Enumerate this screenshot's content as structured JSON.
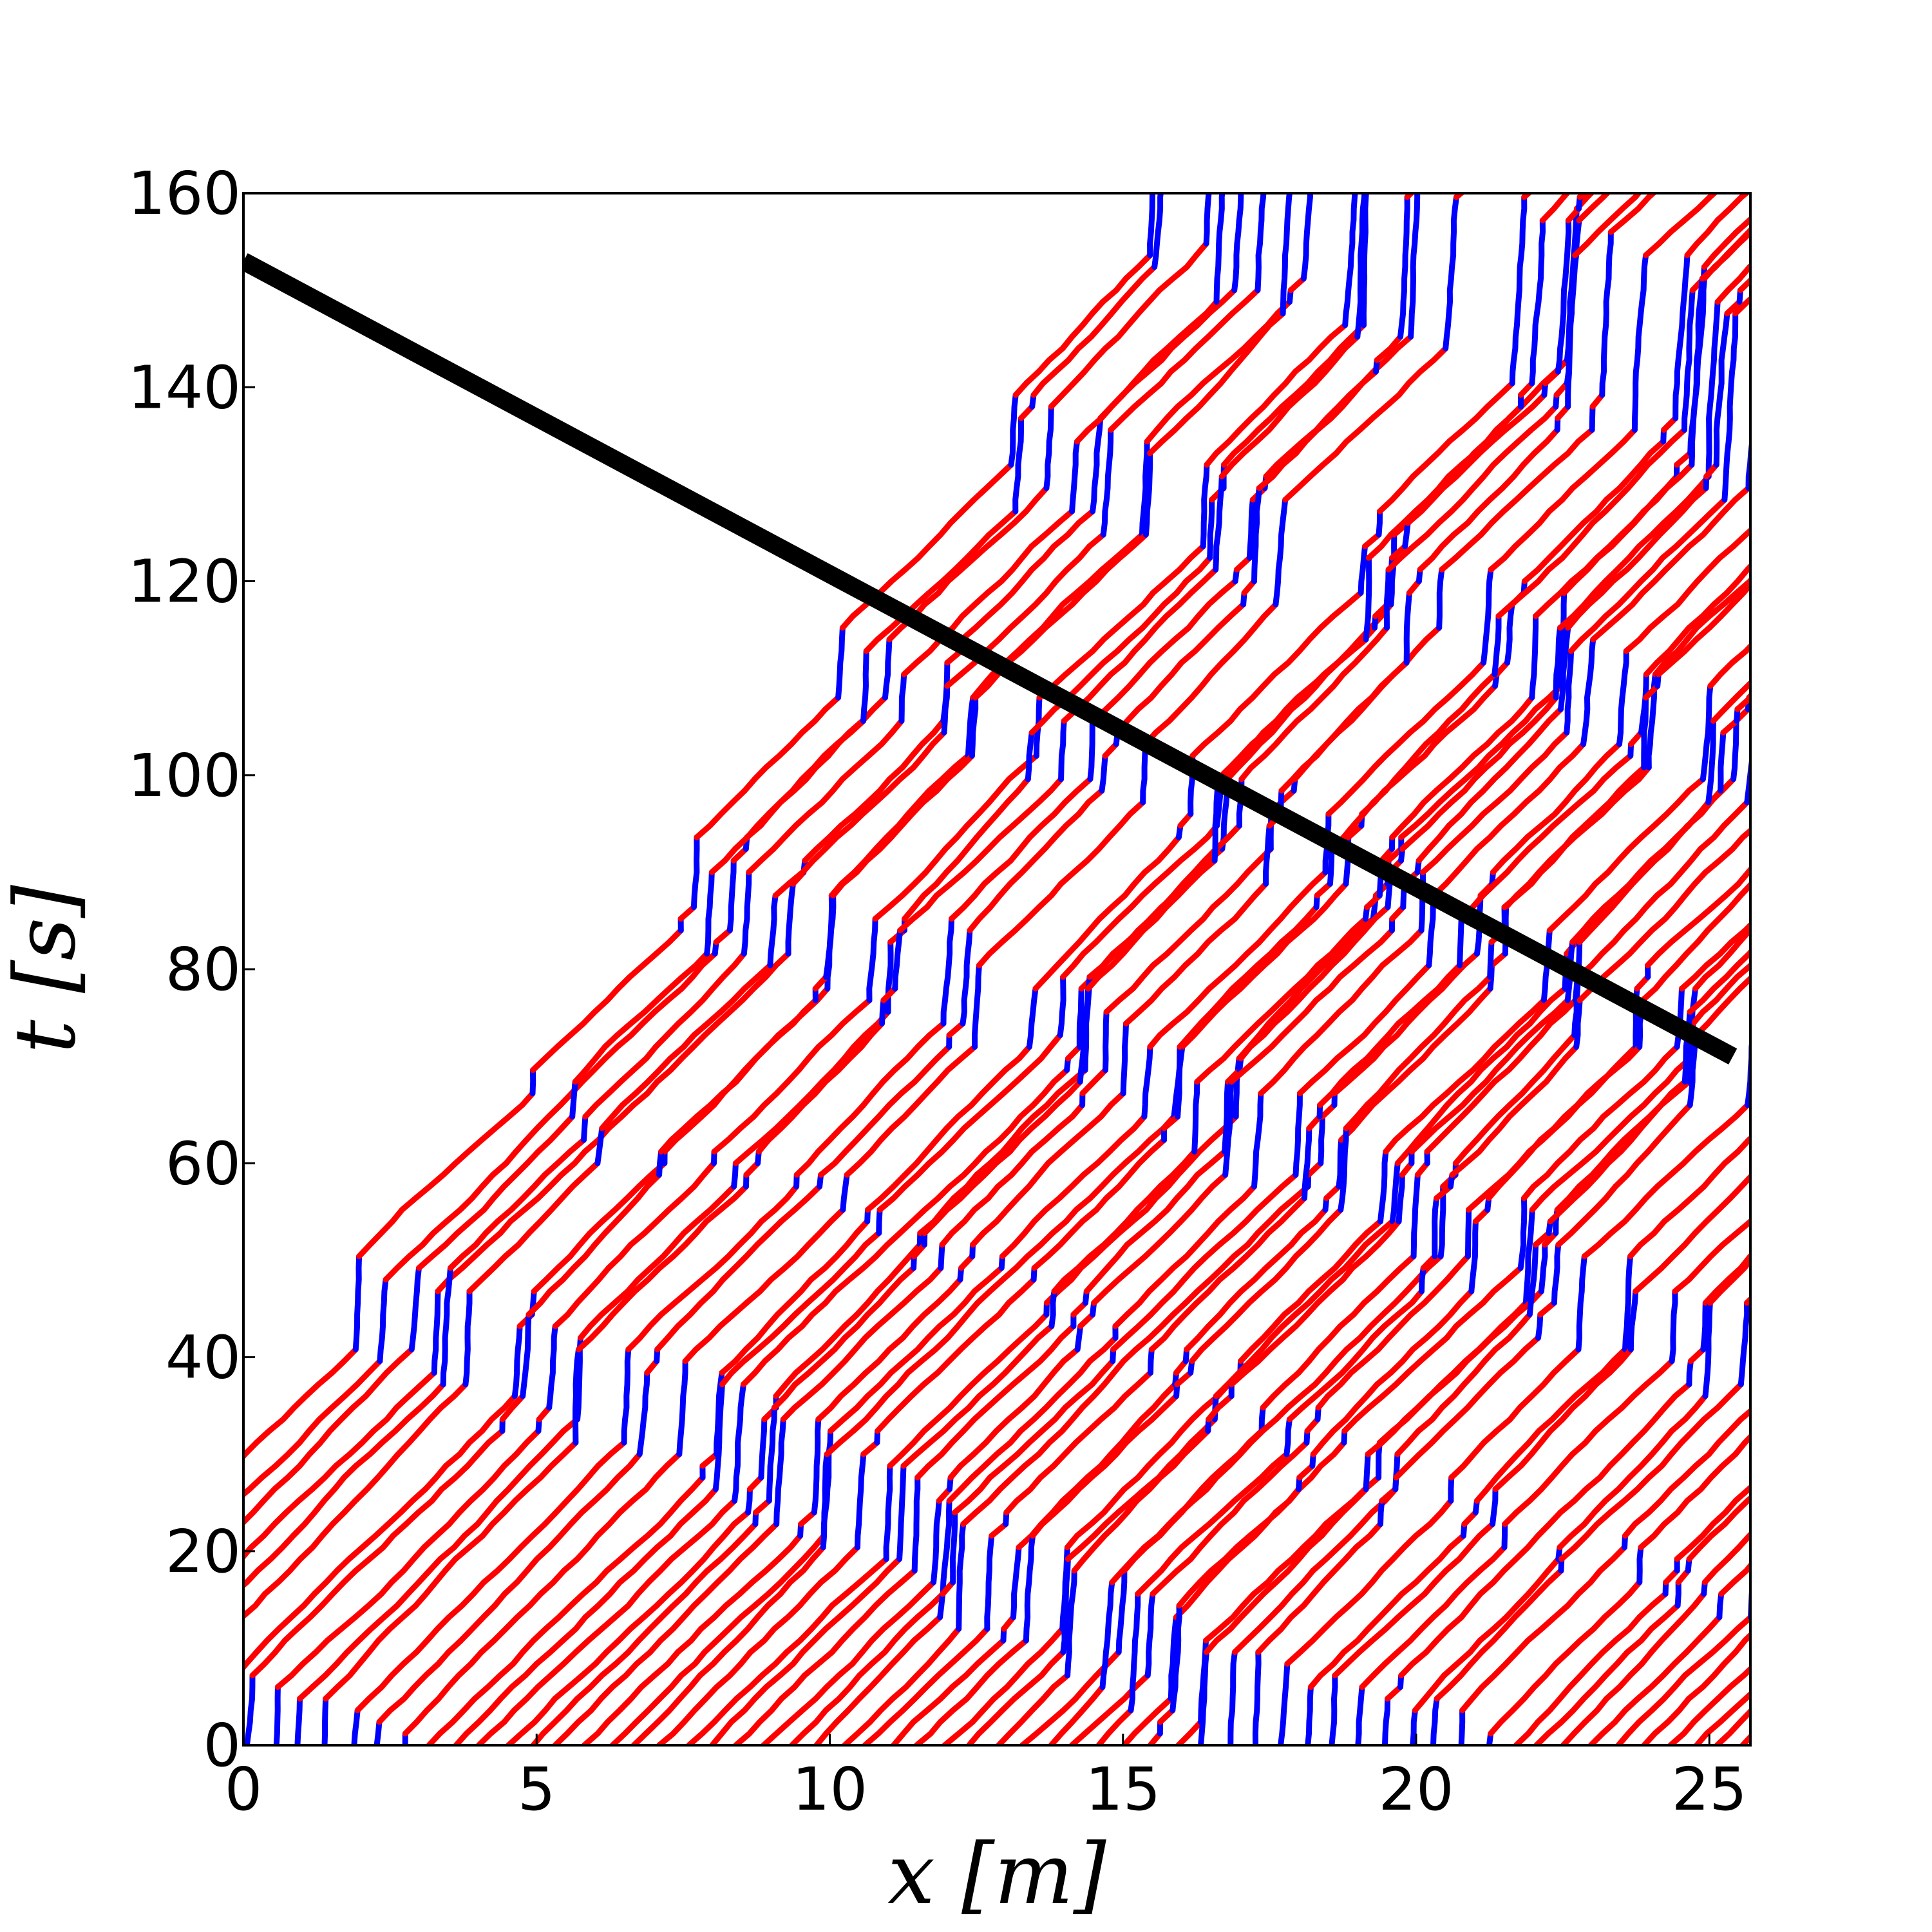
{
  "chart_data": {
    "type": "line",
    "title": "",
    "xlabel": "x [m]",
    "ylabel": "t [s]",
    "xlim": [
      0,
      25.7
    ],
    "ylim": [
      0,
      160
    ],
    "x_ticks": [
      "0",
      "5",
      "10",
      "15",
      "20",
      "25"
    ],
    "y_ticks": [
      "0",
      "20",
      "40",
      "60",
      "80",
      "100",
      "120",
      "140",
      "160"
    ],
    "grid": false,
    "legend": "none",
    "colors": {
      "slow": "#0000ff",
      "fast": "#ff0000",
      "fit_line": "#000000"
    },
    "series": [
      {
        "kind": "trajectories",
        "x": [
          0,
          1,
          2,
          3,
          4,
          5,
          6,
          7,
          8,
          9,
          10,
          11,
          12,
          13,
          14,
          15,
          16,
          17,
          18,
          19,
          20,
          21,
          22,
          23,
          24,
          25
        ],
        "start_t": [
          0,
          7,
          14,
          21,
          28,
          35,
          42,
          49,
          56,
          63,
          70,
          77,
          84,
          91,
          98,
          105,
          112,
          119,
          126,
          133,
          140,
          147,
          154
        ],
        "note": "vehicle trajectories (blue = slow/stopped, red = moving)"
      },
      {
        "kind": "line",
        "x": [
          0,
          25.4
        ],
        "y": [
          153,
          71
        ]
      }
    ]
  }
}
